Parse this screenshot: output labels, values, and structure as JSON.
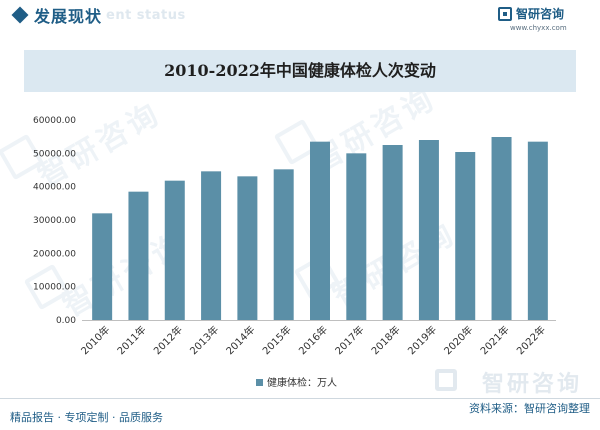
{
  "header": {
    "section_title": "发展现状",
    "section_subtitle": "ent status",
    "brand_name": "智研咨询",
    "brand_url": "www.chyxx.com",
    "watermark_text": "智研咨询"
  },
  "chart_data": {
    "type": "bar",
    "title": "2010-2022年中国健康体检人次变动",
    "categories": [
      "2010年",
      "2011年",
      "2012年",
      "2013年",
      "2014年",
      "2015年",
      "2016年",
      "2017年",
      "2018年",
      "2019年",
      "2020年",
      "2021年",
      "2022年"
    ],
    "series": [
      {
        "name": "健康体检：万人",
        "values": [
          32000,
          38500,
          41800,
          44600,
          43100,
          45200,
          53500,
          50000,
          52500,
          54000,
          50400,
          54900,
          53500
        ]
      }
    ],
    "y_ticks": [
      "0.00",
      "10000.00",
      "20000.00",
      "30000.00",
      "40000.00",
      "50000.00",
      "60000.00"
    ],
    "ylim": [
      0,
      60000
    ],
    "xlabel": "",
    "ylabel": "",
    "legend_position": "bottom",
    "bar_color": "#5b8fa7",
    "grid": false
  },
  "footer": {
    "left_text": "精品报告 · 专项定制 · 品质服务",
    "right_text": "资料来源：智研咨询整理"
  }
}
